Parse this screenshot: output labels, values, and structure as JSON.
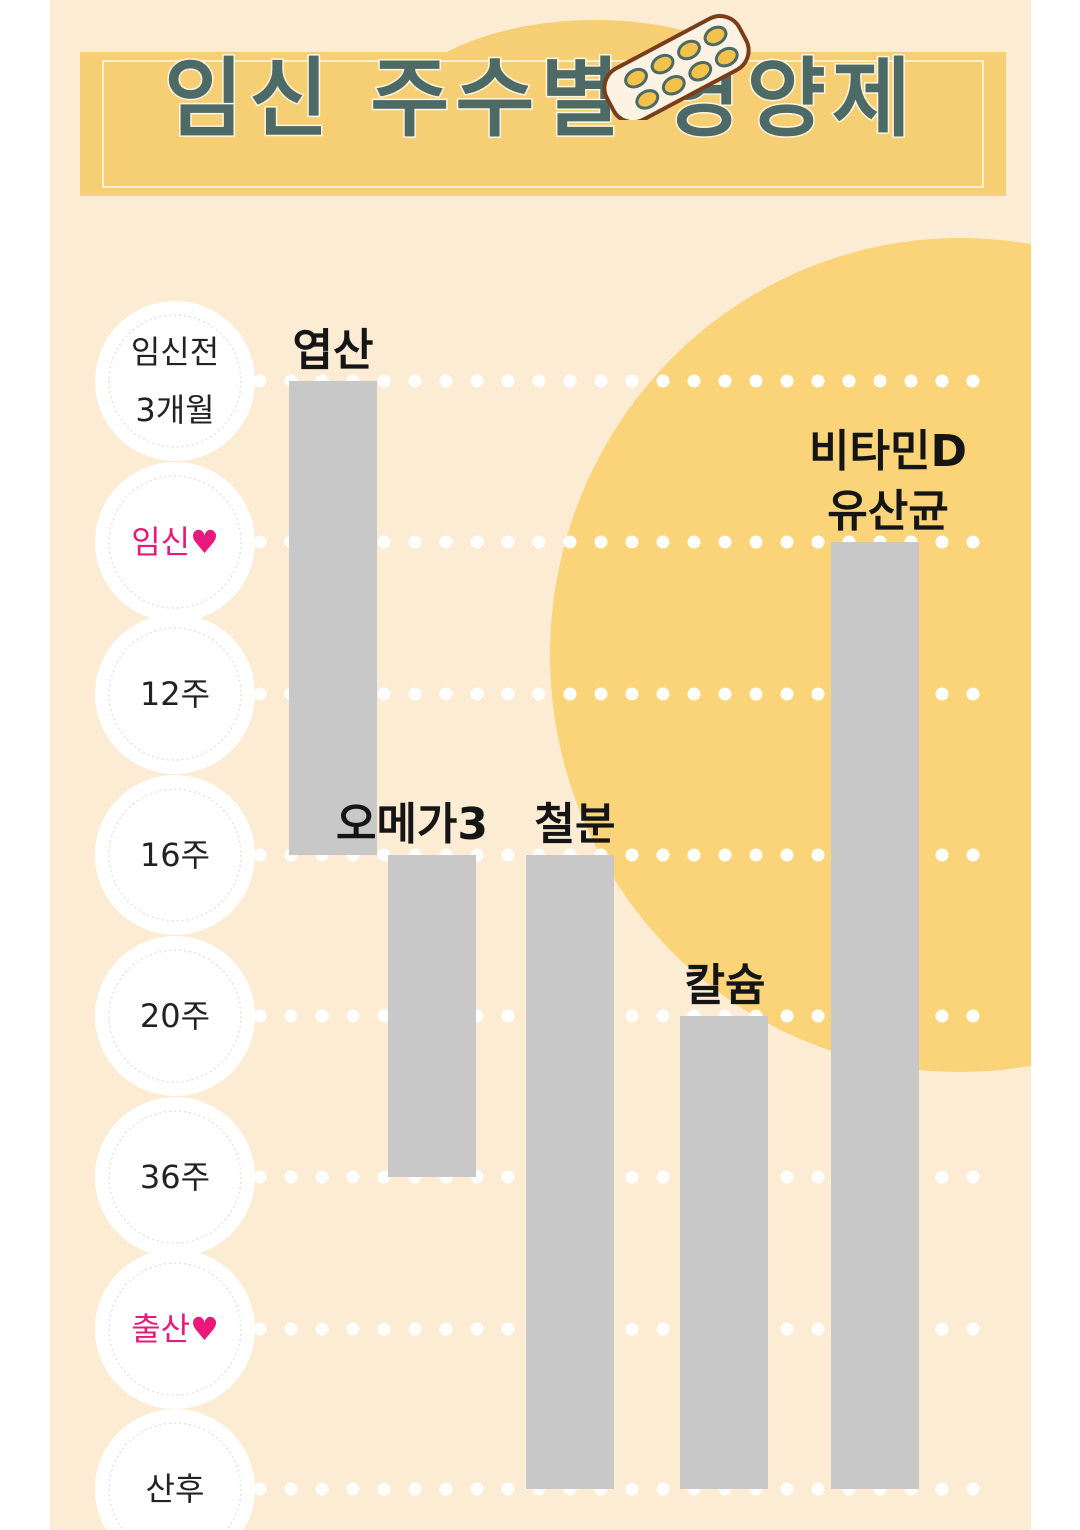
{
  "title": "임신 주수별 영양제",
  "colors": {
    "background": "#fdecd4",
    "banner": "#f6cf74",
    "title_text": "#4d6a66",
    "sun": "#fbd47a",
    "bar": "#c8c8c8",
    "accent_label": "#e8197a",
    "dots": "#ffffff"
  },
  "icons": {
    "title_decoration": "pill-blister-pack-icon",
    "heart": "heart-icon"
  },
  "chart_data": {
    "type": "bar",
    "subtype": "floating-range-timeline",
    "title": "임신 주수별 영양제",
    "categories": [
      "임신전\n3개월",
      "임신♥",
      "12주",
      "16주",
      "20주",
      "36주",
      "출산♥",
      "산후"
    ],
    "accent_categories": [
      "임신♥",
      "출산♥"
    ],
    "series": [
      {
        "name": "엽산",
        "start": "임신전\n3개월",
        "end": "16주"
      },
      {
        "name": "오메가3",
        "start": "16주",
        "end": "36주"
      },
      {
        "name": "철분",
        "start": "16주",
        "end": "산후"
      },
      {
        "name": "칼슘",
        "start": "20주",
        "end": "산후"
      },
      {
        "name": "비타민D\n유산균",
        "start": "임신♥",
        "end": "산후"
      }
    ],
    "grid": true,
    "legend": "none"
  }
}
